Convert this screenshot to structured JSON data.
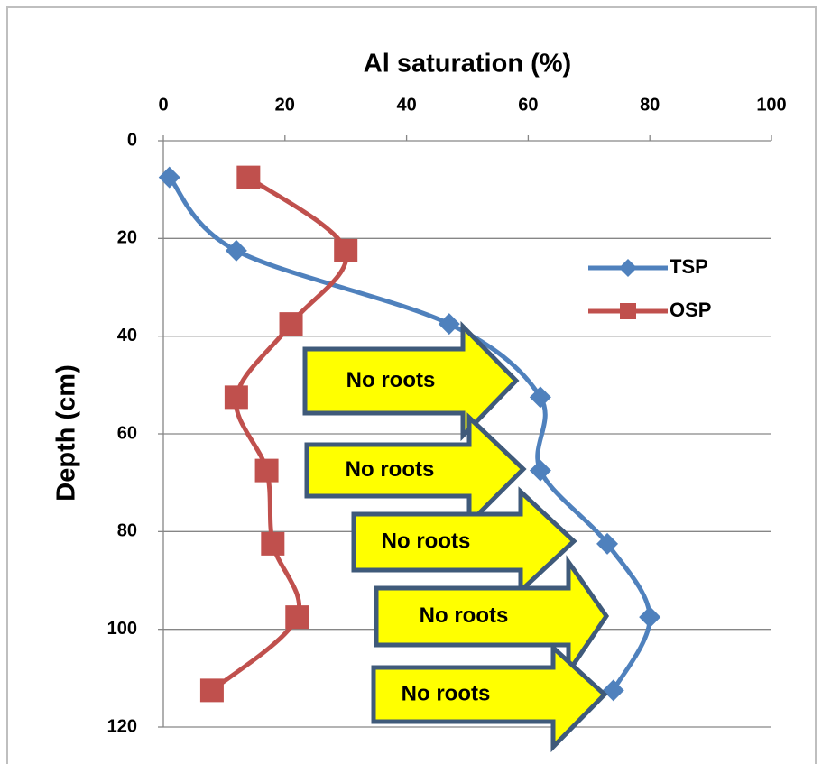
{
  "chart_data": {
    "type": "line",
    "title": "Al saturation (%)",
    "xlabel": "Depth (cm)",
    "x": [
      7.5,
      22.5,
      37.5,
      52.5,
      67.5,
      82.5,
      97.5,
      112.5
    ],
    "series": [
      {
        "name": "TSP",
        "color": "#4f81bd",
        "marker": "diamond",
        "values": [
          1,
          12,
          47,
          62,
          62,
          73,
          80,
          74
        ]
      },
      {
        "name": "OSP",
        "color": "#c0504d",
        "marker": "square",
        "values": [
          14,
          30,
          21,
          12,
          17,
          18,
          22,
          8
        ]
      }
    ],
    "xlim": [
      0,
      120
    ],
    "xticks": [
      0,
      20,
      40,
      60,
      80,
      100,
      120
    ],
    "ylim": [
      0,
      100
    ],
    "yticks": [
      0,
      20,
      40,
      60,
      80,
      100
    ],
    "grid": true,
    "legend": "right",
    "annotations": [
      "No roots",
      "No roots",
      "No roots",
      "No roots",
      "No roots"
    ]
  }
}
